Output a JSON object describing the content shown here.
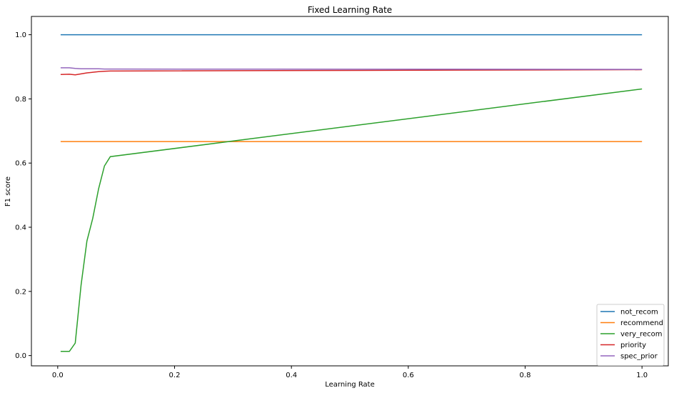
{
  "chart_data": {
    "type": "line",
    "title": "Fixed Learning Rate",
    "xlabel": "Learning Rate",
    "ylabel": "F1 score",
    "xlim": [
      -0.045,
      1.045
    ],
    "ylim": [
      -0.032,
      1.057
    ],
    "xticks": [
      0.0,
      0.2,
      0.4,
      0.6,
      0.8,
      1.0
    ],
    "xtick_labels": [
      "0.0",
      "0.2",
      "0.4",
      "0.6",
      "0.8",
      "1.0"
    ],
    "yticks": [
      0.0,
      0.2,
      0.4,
      0.6,
      0.8,
      1.0
    ],
    "ytick_labels": [
      "0.0",
      "0.2",
      "0.4",
      "0.6",
      "0.8",
      "1.0"
    ],
    "grid": false,
    "legend_position": "bottom-right",
    "series": [
      {
        "name": "not_recom",
        "color": "#1f77b4",
        "x": [
          0.005,
          1.0
        ],
        "y": [
          1.0,
          1.0
        ]
      },
      {
        "name": "recommend",
        "color": "#ff7f0e",
        "x": [
          0.005,
          1.0
        ],
        "y": [
          0.667,
          0.667
        ]
      },
      {
        "name": "very_recom",
        "color": "#2ca02c",
        "x": [
          0.005,
          0.02,
          0.03,
          0.04,
          0.05,
          0.06,
          0.07,
          0.08,
          0.09,
          1.0
        ],
        "y": [
          0.013,
          0.013,
          0.039,
          0.22,
          0.357,
          0.428,
          0.52,
          0.591,
          0.62,
          0.831
        ]
      },
      {
        "name": "priority",
        "color": "#d62728",
        "x": [
          0.005,
          0.02,
          0.03,
          0.04,
          0.05,
          0.06,
          0.07,
          0.08,
          0.09,
          0.1,
          1.0
        ],
        "y": [
          0.876,
          0.877,
          0.875,
          0.878,
          0.881,
          0.883,
          0.885,
          0.886,
          0.887,
          0.887,
          0.891
        ]
      },
      {
        "name": "spec_prior",
        "color": "#9467bd",
        "x": [
          0.005,
          0.02,
          0.03,
          0.04,
          0.05,
          0.06,
          0.07,
          0.08,
          0.09,
          0.1,
          1.0
        ],
        "y": [
          0.897,
          0.897,
          0.895,
          0.894,
          0.894,
          0.894,
          0.894,
          0.893,
          0.893,
          0.893,
          0.892
        ]
      }
    ]
  }
}
